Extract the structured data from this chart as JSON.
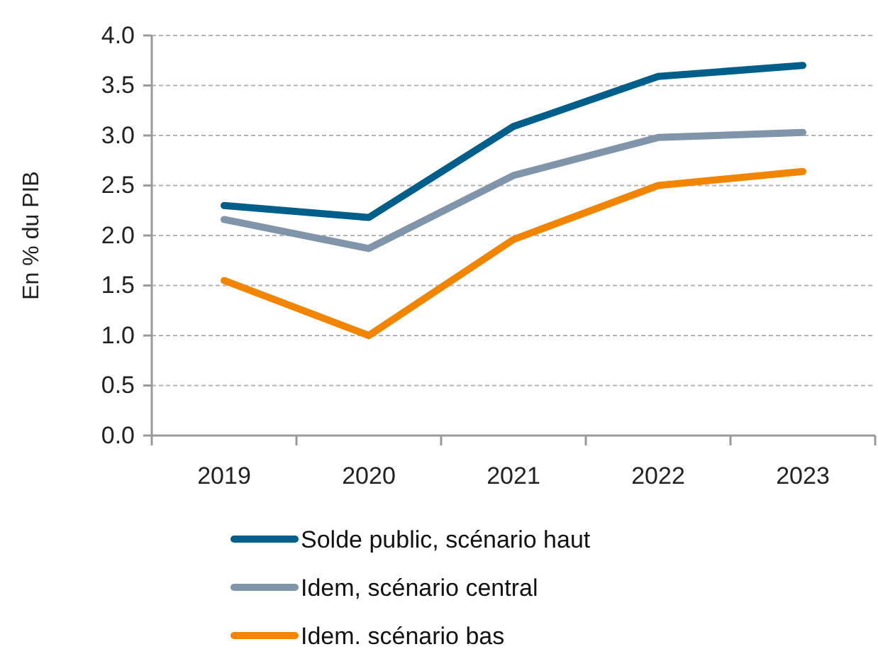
{
  "chart_data": {
    "type": "line",
    "ylabel": "En % du PIB",
    "categories": [
      "2019",
      "2020",
      "2021",
      "2022",
      "2023"
    ],
    "series": [
      {
        "name": "Solde public, scénario haut",
        "color": "#005f8a",
        "values": [
          2.3,
          2.18,
          3.09,
          3.59,
          3.7
        ]
      },
      {
        "name": "Idem, scénario central",
        "color": "#8094aa",
        "values": [
          2.16,
          1.87,
          2.6,
          2.98,
          3.03
        ]
      },
      {
        "name": "Idem. scénario bas",
        "color": "#f28500",
        "values": [
          1.55,
          1.0,
          1.96,
          2.5,
          2.64
        ]
      }
    ],
    "ylim": [
      0,
      4
    ],
    "yticks": [
      {
        "value": 0,
        "label": "0.0"
      },
      {
        "value": 0.5,
        "label": "0.5"
      },
      {
        "value": 1,
        "label": "1.0"
      },
      {
        "value": 1.5,
        "label": "1.5"
      },
      {
        "value": 2,
        "label": "2.0"
      },
      {
        "value": 2.5,
        "label": "2.5"
      },
      {
        "value": 3,
        "label": "3.0"
      },
      {
        "value": 3.5,
        "label": "3.5"
      },
      {
        "value": 4,
        "label": "4.0"
      }
    ],
    "grid": "y",
    "legend": "bottom",
    "marker": "none",
    "line_style": "solid"
  }
}
